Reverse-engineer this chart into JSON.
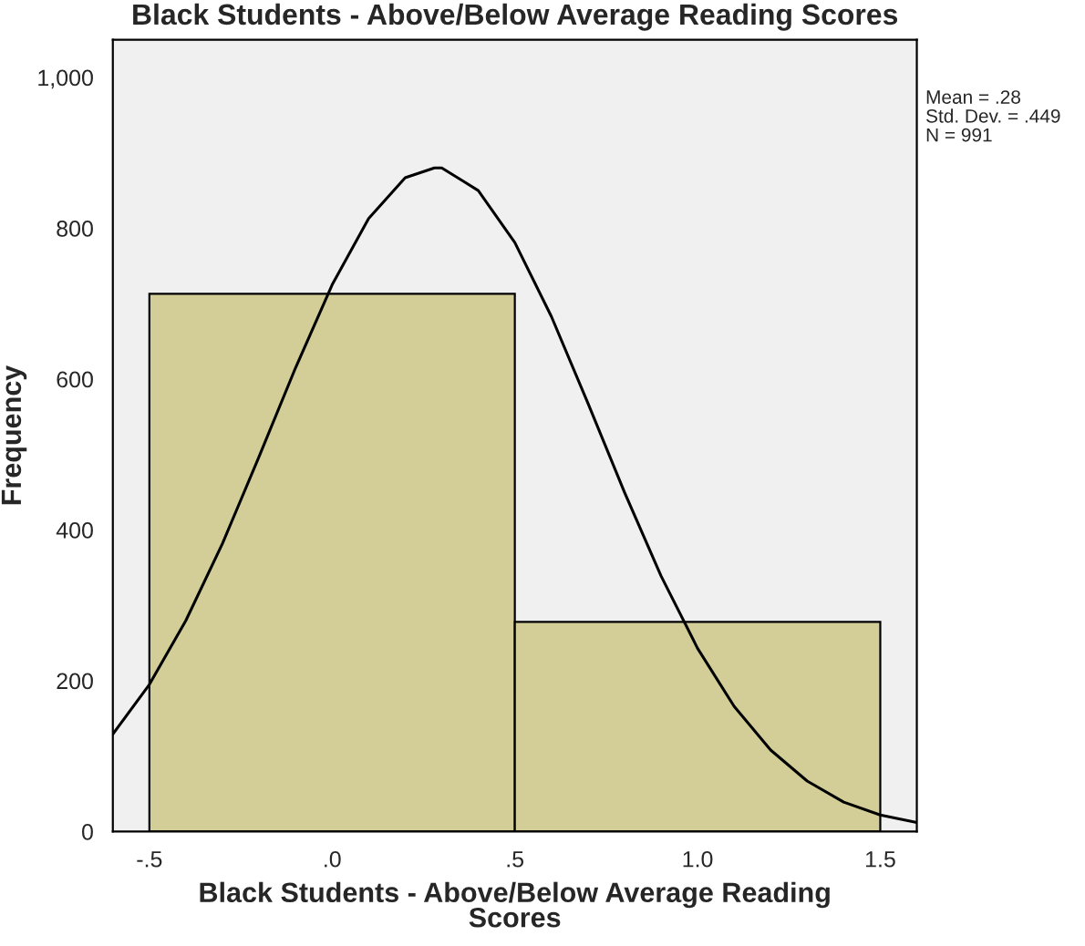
{
  "chart_data": {
    "type": "histogram",
    "title": "Black Students - Above/Below Average Reading Scores",
    "xlabel": "Black Students - Above/Below Average Reading\nScores",
    "ylabel": "Frequency",
    "bins": [
      -0.5,
      0.5,
      1.5
    ],
    "values": [
      713,
      278
    ],
    "color": "#d3ce97",
    "series": [
      {
        "type": "line",
        "color": "#000000",
        "x": [
          -0.6,
          -0.5,
          -0.4,
          -0.3,
          -0.2,
          -0.1,
          0.0,
          0.1,
          0.2,
          0.28,
          0.3,
          0.4,
          0.5,
          0.6,
          0.7,
          0.8,
          0.9,
          1.0,
          1.1,
          1.2,
          1.3,
          1.4,
          1.5,
          1.6
        ],
        "values": [
          129,
          195,
          280,
          382,
          497,
          615,
          725,
          813,
          867,
          880,
          880,
          850,
          781,
          683,
          568,
          450,
          339,
          243,
          166,
          108,
          67,
          39,
          22,
          12
        ]
      }
    ],
    "xlim": [
      -0.6,
      1.6
    ],
    "ylim": [
      0,
      1050
    ],
    "xticks": [
      {
        "value": -0.5,
        "label": "-.5"
      },
      {
        "value": 0.0,
        "label": ".0"
      },
      {
        "value": 0.5,
        "label": ".5"
      },
      {
        "value": 1.0,
        "label": "1.0"
      },
      {
        "value": 1.5,
        "label": "1.5"
      }
    ],
    "yticks": [
      0,
      200,
      400,
      600,
      800,
      {
        "value": 1000,
        "label": "1,000"
      }
    ],
    "grid": false,
    "legend": false,
    "annotations": [
      "Mean = .28",
      "Std. Dev. = .449",
      "N = 991"
    ]
  }
}
